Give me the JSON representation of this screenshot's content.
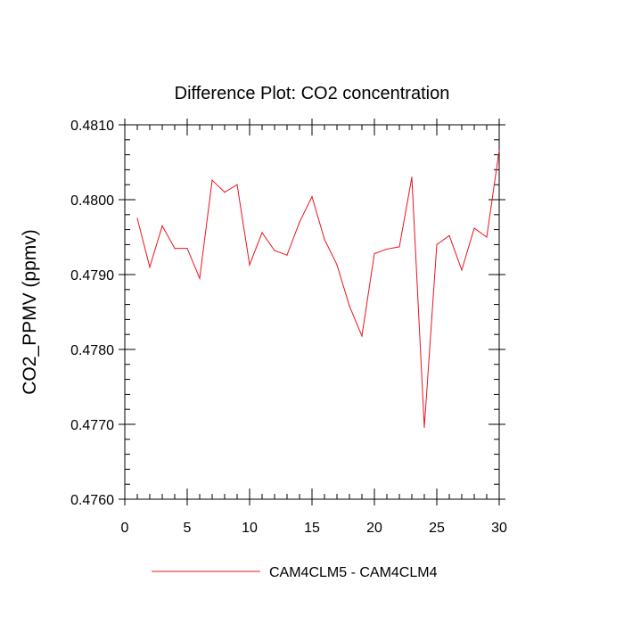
{
  "chart_data": {
    "type": "line",
    "title": "Difference Plot: CO2 concentration",
    "xlabel": "",
    "ylabel": "CO2_PPMV  (ppmv)",
    "xlim": [
      0,
      30
    ],
    "ylim": [
      0.476,
      0.481
    ],
    "x_ticks": [
      0,
      5,
      10,
      15,
      20,
      25,
      30
    ],
    "x_tick_labels": [
      "0",
      "5",
      "10",
      "15",
      "20",
      "25",
      "30"
    ],
    "y_ticks": [
      0.476,
      0.477,
      0.478,
      0.479,
      0.48,
      0.481
    ],
    "y_tick_labels": [
      "0.4760",
      "0.4770",
      "0.4780",
      "0.4790",
      "0.4800",
      "0.4810"
    ],
    "grid": false,
    "legend_position": "bottom",
    "series": [
      {
        "name": "CAM4CLM5 - CAM4CLM4",
        "color": "#e8141e",
        "x": [
          1,
          2,
          3,
          4,
          5,
          6,
          7,
          8,
          9,
          10,
          11,
          12,
          13,
          14,
          15,
          16,
          17,
          18,
          19,
          20,
          21,
          22,
          23,
          24,
          25,
          26,
          27,
          28,
          29,
          30
        ],
        "values": [
          0.47975,
          0.4791,
          0.47965,
          0.47935,
          0.47935,
          0.47895,
          0.48026,
          0.4801,
          0.4802,
          0.47913,
          0.47956,
          0.47932,
          0.47926,
          0.4797,
          0.48004,
          0.47947,
          0.47913,
          0.47858,
          0.47818,
          0.47928,
          0.47934,
          0.47937,
          0.4803,
          0.47696,
          0.4794,
          0.47952,
          0.47906,
          0.47962,
          0.4795,
          0.48066
        ]
      }
    ]
  }
}
